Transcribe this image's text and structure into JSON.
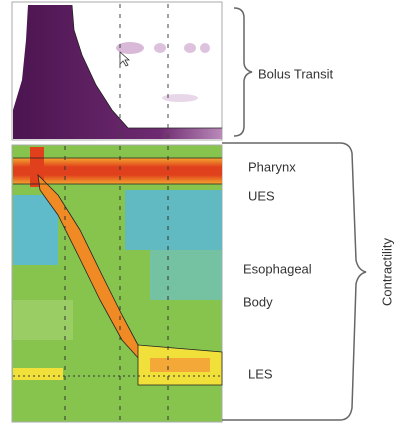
{
  "panels": [
    {
      "label": "Bolus Transit"
    },
    {
      "label": "Contractility",
      "region_labels": [
        "Pharynx",
        "UES",
        "Esophageal",
        "Body",
        "LES"
      ]
    }
  ]
}
